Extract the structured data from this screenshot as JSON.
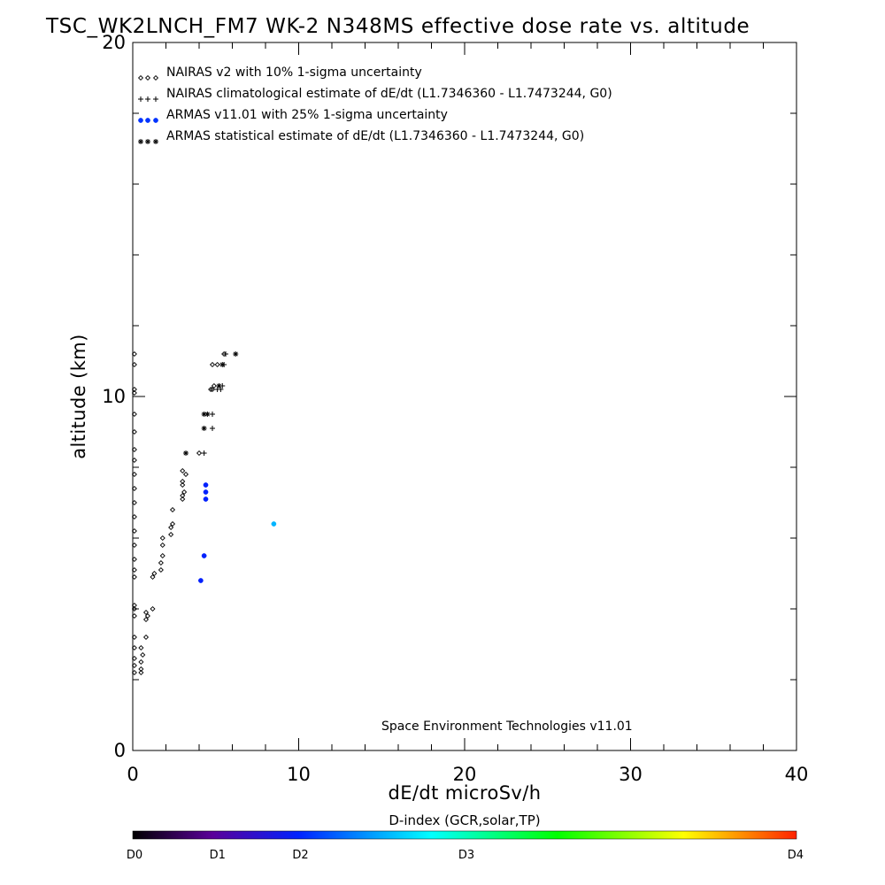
{
  "chart_data": {
    "type": "scatter",
    "title": "TSC_WK2LNCH_FM7 WK-2 N348MS effective dose rate vs. altitude",
    "xlabel": "dE/dt microSv/h",
    "ylabel": "altitude (km)",
    "xlim": [
      0,
      40
    ],
    "ylim": [
      0,
      20
    ],
    "x_ticks": [
      "0",
      "10",
      "20",
      "30",
      "40"
    ],
    "y_ticks": [
      "0",
      "10",
      "20"
    ],
    "x_minor_step": 2,
    "y_minor_step": 2,
    "grid": false,
    "legend_placement": "top-left",
    "credit": "Space Environment Technologies v11.01",
    "colorbar": {
      "title": "D-index (GCR,solar,TP)",
      "labels": [
        {
          "text": "D0",
          "value": 0
        },
        {
          "text": "D1",
          "value": 5
        },
        {
          "text": "D2",
          "value": 10
        },
        {
          "text": "D3",
          "value": 20
        },
        {
          "text": "D4",
          "value": 40
        }
      ],
      "colors": [
        "#000000",
        "#5a0099",
        "#0022ff",
        "#00ffff",
        "#00ff00",
        "#ffff00",
        "#ff2200"
      ]
    },
    "series": [
      {
        "name": "NAIRAS v2 with 10% 1-sigma uncertainty",
        "marker": "diamond",
        "color": "#000000",
        "points": [
          [
            0.1,
            2.2
          ],
          [
            0.1,
            2.4
          ],
          [
            0.1,
            2.6
          ],
          [
            0.1,
            2.9
          ],
          [
            0.1,
            3.2
          ],
          [
            0.1,
            3.8
          ],
          [
            0.1,
            4.0
          ],
          [
            0.1,
            4.1
          ],
          [
            0.1,
            4.9
          ],
          [
            0.1,
            5.1
          ],
          [
            0.1,
            5.4
          ],
          [
            0.1,
            5.8
          ],
          [
            0.1,
            6.2
          ],
          [
            0.1,
            6.6
          ],
          [
            0.1,
            7.0
          ],
          [
            0.1,
            7.4
          ],
          [
            0.1,
            7.8
          ],
          [
            0.1,
            8.2
          ],
          [
            0.1,
            8.5
          ],
          [
            0.1,
            9.0
          ],
          [
            0.1,
            9.5
          ],
          [
            0.1,
            10.1
          ],
          [
            0.1,
            10.2
          ],
          [
            0.1,
            10.9
          ],
          [
            0.1,
            11.2
          ],
          [
            0.5,
            2.2
          ],
          [
            0.5,
            2.3
          ],
          [
            0.5,
            2.5
          ],
          [
            0.6,
            2.7
          ],
          [
            0.5,
            2.9
          ],
          [
            0.8,
            3.2
          ],
          [
            0.8,
            3.7
          ],
          [
            0.8,
            3.9
          ],
          [
            0.9,
            3.8
          ],
          [
            1.2,
            4.0
          ],
          [
            1.2,
            4.9
          ],
          [
            1.3,
            5.0
          ],
          [
            1.7,
            5.1
          ],
          [
            1.7,
            5.3
          ],
          [
            1.8,
            5.5
          ],
          [
            1.8,
            5.8
          ],
          [
            1.8,
            6.0
          ],
          [
            2.3,
            6.1
          ],
          [
            2.3,
            6.3
          ],
          [
            2.4,
            6.4
          ],
          [
            2.4,
            6.8
          ],
          [
            3.0,
            7.1
          ],
          [
            3.0,
            7.2
          ],
          [
            3.1,
            7.3
          ],
          [
            3.0,
            7.5
          ],
          [
            3.0,
            7.6
          ],
          [
            3.2,
            7.8
          ],
          [
            3.0,
            7.9
          ],
          [
            4.0,
            8.4
          ],
          [
            4.7,
            10.2
          ],
          [
            4.8,
            10.2
          ],
          [
            4.9,
            10.3
          ],
          [
            4.8,
            10.9
          ],
          [
            5.1,
            10.9
          ],
          [
            5.5,
            11.2
          ]
        ]
      },
      {
        "name": "NAIRAS climatological estimate of dE/dt (L1.7346360 - L1.7473244, G0)",
        "marker": "plus",
        "color": "#000000",
        "points": [
          [
            4.3,
            8.4
          ],
          [
            4.8,
            9.1
          ],
          [
            4.8,
            9.5
          ],
          [
            5.1,
            10.2
          ],
          [
            5.3,
            10.2
          ],
          [
            5.4,
            10.3
          ],
          [
            5.5,
            10.9
          ],
          [
            5.6,
            11.2
          ]
        ]
      },
      {
        "name": "ARMAS v11.01 with 25% 1-sigma uncertainty",
        "marker": "dot",
        "color": "#0033ff",
        "points": [
          [
            4.1,
            4.8,
            0.55
          ],
          [
            4.3,
            5.5,
            0.55
          ],
          [
            4.4,
            7.1,
            0.55
          ],
          [
            4.4,
            7.3,
            0.55
          ],
          [
            4.4,
            7.5,
            0.55
          ],
          [
            8.5,
            6.4,
            0.85
          ]
        ]
      },
      {
        "name": "ARMAS statistical estimate of dE/dt (L1.7346360 - L1.7473244, G0)",
        "marker": "asterisk",
        "color": "#000000",
        "points": [
          [
            3.2,
            8.4
          ],
          [
            4.3,
            9.1
          ],
          [
            4.3,
            9.5
          ],
          [
            4.5,
            9.5
          ],
          [
            5.2,
            10.3
          ],
          [
            5.4,
            10.9
          ],
          [
            6.2,
            11.2
          ]
        ]
      }
    ]
  }
}
